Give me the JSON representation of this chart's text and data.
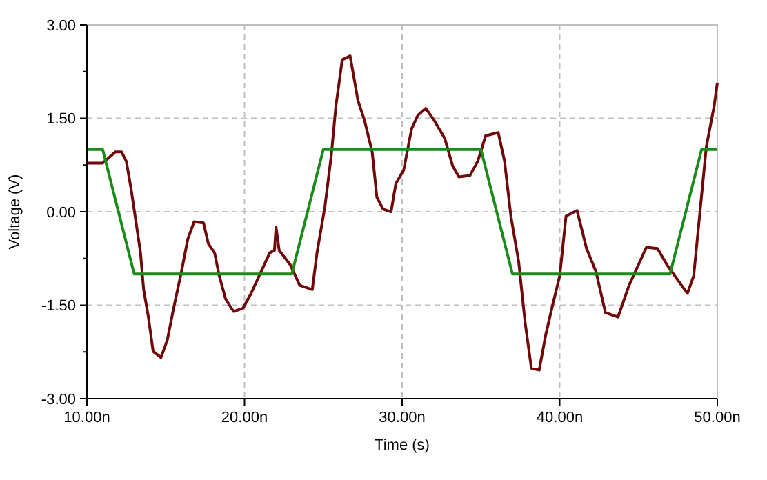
{
  "chart_data": {
    "type": "line",
    "xlabel": "Time (s)",
    "ylabel": "Voltage (V)",
    "xlim": [
      10,
      50
    ],
    "xticks": [
      {
        "value": 10,
        "label": "10.00n"
      },
      {
        "value": 20,
        "label": "20.00n"
      },
      {
        "value": 30,
        "label": "30.00n"
      },
      {
        "value": 40,
        "label": "40.00n"
      },
      {
        "value": 50,
        "label": "50.00n"
      }
    ],
    "ylim": [
      -3,
      3
    ],
    "yticks": [
      {
        "value": 3,
        "label": "3.00"
      },
      {
        "value": 2.25,
        "label": null
      },
      {
        "value": 1.5,
        "label": "1.50"
      },
      {
        "value": 0.75,
        "label": null
      },
      {
        "value": 0,
        "label": "0.00"
      },
      {
        "value": -0.75,
        "label": null
      },
      {
        "value": -1.5,
        "label": "-1.50"
      },
      {
        "value": -2.25,
        "label": null
      },
      {
        "value": -3,
        "label": "-3.00"
      }
    ],
    "grid": true,
    "marker": "none",
    "line_style": "solid",
    "series": [
      {
        "color": "#700a0a",
        "x": [
          10.0,
          11.0,
          11.5,
          11.8,
          12.2,
          12.5,
          12.8,
          13.1,
          13.4,
          13.6,
          13.9,
          14.2,
          14.7,
          15.1,
          15.5,
          16.0,
          16.4,
          16.8,
          17.4,
          17.7,
          18.1,
          18.4,
          18.8,
          19.3,
          19.9,
          20.4,
          21.0,
          21.6,
          21.9,
          22.0,
          22.2,
          22.9,
          23.5,
          24.3,
          24.6,
          25.1,
          25.5,
          25.8,
          26.2,
          26.7,
          27.2,
          27.6,
          28.1,
          28.4,
          28.8,
          29.3,
          29.6,
          30.1,
          30.6,
          31.0,
          31.5,
          32.0,
          32.7,
          33.2,
          33.6,
          34.3,
          34.8,
          35.3,
          36.1,
          36.5,
          36.9,
          37.4,
          37.8,
          38.2,
          38.7,
          39.1,
          39.5,
          40.0,
          40.4,
          41.1,
          41.7,
          42.3,
          42.9,
          43.7,
          44.4,
          45.0,
          45.5,
          46.2,
          46.8,
          47.5,
          48.1,
          48.5,
          48.9,
          49.3,
          49.8,
          50.0
        ],
        "values": [
          0.78,
          0.78,
          0.89,
          0.96,
          0.96,
          0.81,
          0.37,
          -0.14,
          -0.66,
          -1.25,
          -1.69,
          -2.24,
          -2.34,
          -2.06,
          -1.55,
          -0.96,
          -0.44,
          -0.16,
          -0.18,
          -0.51,
          -0.66,
          -1.03,
          -1.4,
          -1.6,
          -1.55,
          -1.32,
          -0.99,
          -0.66,
          -0.62,
          -0.25,
          -0.62,
          -0.85,
          -1.18,
          -1.25,
          -0.66,
          0.08,
          0.89,
          1.7,
          2.44,
          2.5,
          1.78,
          1.48,
          0.96,
          0.23,
          0.04,
          0.0,
          0.45,
          0.67,
          1.33,
          1.55,
          1.66,
          1.48,
          1.18,
          0.74,
          0.56,
          0.58,
          0.81,
          1.22,
          1.27,
          0.81,
          -0.07,
          -0.81,
          -1.77,
          -2.51,
          -2.54,
          -1.99,
          -1.55,
          -1.03,
          -0.07,
          0.02,
          -0.59,
          -0.96,
          -1.62,
          -1.69,
          -1.18,
          -0.85,
          -0.57,
          -0.59,
          -0.85,
          -1.1,
          -1.31,
          -1.03,
          0.0,
          1.04,
          1.7,
          2.07
        ]
      },
      {
        "color": "#1a8a1a",
        "x": [
          10,
          11,
          13,
          23,
          25,
          35,
          37,
          47,
          49,
          50
        ],
        "values": [
          1,
          1,
          -1,
          -1,
          1,
          1,
          -1,
          -1,
          1,
          1
        ]
      }
    ]
  }
}
